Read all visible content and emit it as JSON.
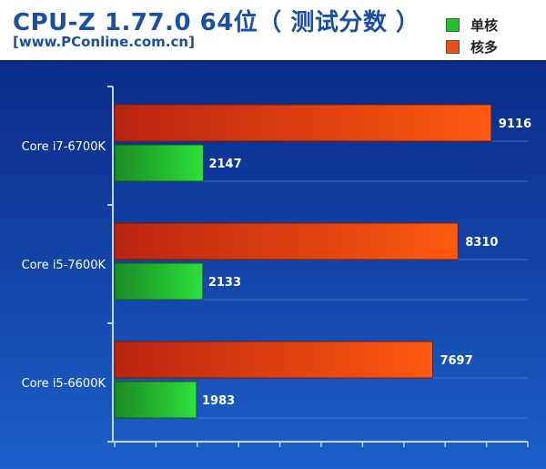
{
  "title": "CPU-Z 1.77.0 64位（ 测试分数 ）",
  "subtitle": "[www.PConline.com.cn]",
  "colors": {
    "background_top": "#0a2a88",
    "background_bottom": "#1b5fc8",
    "single_core": "#22c22a",
    "multi_core": "#e8501a",
    "axis": "#b8d6ff",
    "value_label": "#ffffff"
  },
  "legend": [
    {
      "label": "单核",
      "color": "#22c22a"
    },
    {
      "label": "核多",
      "color": "#e8501a"
    }
  ],
  "chart_data": {
    "type": "bar",
    "orientation": "horizontal",
    "title": "CPU-Z 1.77.0 64位（ 测试分数 ）",
    "subtitle": "[www.PConline.com.cn]",
    "categories": [
      "Core i7-6700K",
      "Core i5-7600K",
      "Core i5-6600K"
    ],
    "series": [
      {
        "name": "核多",
        "values": [
          9116,
          8310,
          7697
        ]
      },
      {
        "name": "单核",
        "values": [
          2147,
          2133,
          1983
        ]
      }
    ],
    "xlim": [
      0,
      10000
    ],
    "xlabel": "",
    "ylabel": "",
    "grid": true,
    "legend_position": "top-right"
  }
}
